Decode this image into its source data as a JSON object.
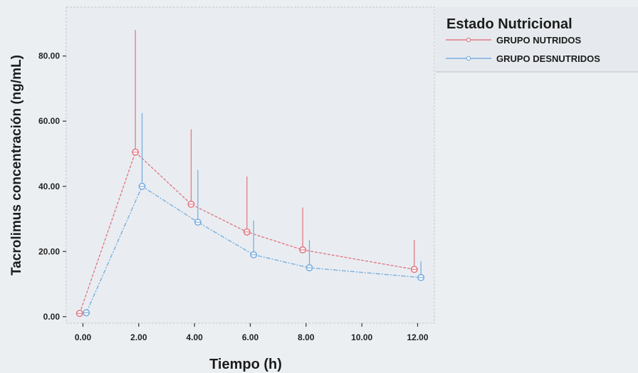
{
  "chart_data": {
    "type": "line",
    "title": "",
    "xlabel": "Tiempo (h)",
    "ylabel": "Tacrolimus concentración (ng/mL)",
    "x": [
      0,
      2,
      4,
      6,
      8,
      12
    ],
    "x_ticks": [
      "0.00",
      "2.00",
      "4.00",
      "6.00",
      "8.00",
      "10.00",
      "12.00"
    ],
    "x_tick_values": [
      0,
      2,
      4,
      6,
      8,
      10,
      12
    ],
    "y_ticks": [
      "0.00",
      "20.00",
      "40.00",
      "60.00",
      "80.00"
    ],
    "y_tick_values": [
      0,
      20,
      40,
      60,
      80
    ],
    "xlim": [
      -0.6,
      12.6
    ],
    "ylim": [
      -2,
      95
    ],
    "grid": false,
    "legend": {
      "title": "Estado Nutricional",
      "placement": "right"
    },
    "series": [
      {
        "name": "GRUPO NUTRIDOS",
        "color": "#e27a86",
        "values": [
          1.0,
          50.5,
          34.5,
          26.0,
          20.5,
          14.5
        ],
        "error_upper": [
          1.5,
          88.0,
          57.5,
          43.0,
          33.5,
          23.5
        ],
        "error_lower": [
          1.0,
          50.5,
          34.5,
          26.0,
          20.5,
          14.5
        ]
      },
      {
        "name": "GRUPO DESNUTRIDOS",
        "color": "#7aaee0",
        "values": [
          1.2,
          40.0,
          29.0,
          19.0,
          15.0,
          12.0
        ],
        "error_upper": [
          1.7,
          62.5,
          45.0,
          29.5,
          23.5,
          17.0
        ],
        "error_lower": [
          1.2,
          40.0,
          29.0,
          19.0,
          15.0,
          12.0
        ]
      }
    ]
  }
}
